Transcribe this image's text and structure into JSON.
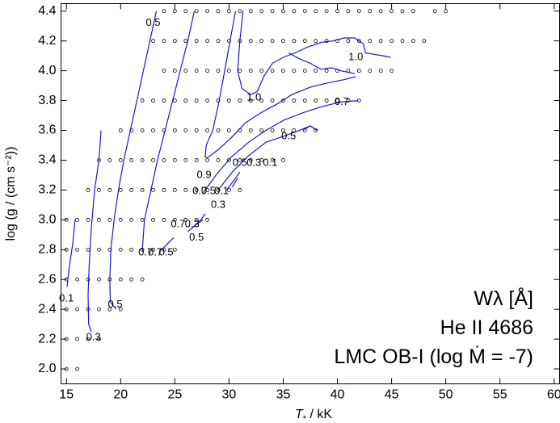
{
  "chart_data": {
    "type": "contour",
    "xlabel_main": "T",
    "xlabel_sub": "*",
    "xlabel_unit": " / kK",
    "ylabel": "log (g / (cm s⁻²))",
    "xlim": [
      14.5,
      60.5
    ],
    "ylim": [
      1.9,
      4.45
    ],
    "xticks": [
      15,
      20,
      25,
      30,
      35,
      40,
      45,
      50,
      55,
      60
    ],
    "yticks": [
      2.0,
      2.2,
      2.4,
      2.6,
      2.8,
      3.0,
      3.2,
      3.4,
      3.6,
      3.8,
      4.0,
      4.2,
      4.4
    ],
    "ytick_labels": [
      "2.0",
      "2.2",
      "2.4",
      "2.6",
      "2.8",
      "3.0",
      "3.2",
      "3.4",
      "3.6",
      "3.8",
      "4.0",
      "4.2",
      "4.4"
    ],
    "info_lines": [
      "Wλ [Å]",
      "He II 4686",
      "LMC OB-I (log Ṁ = -7)"
    ],
    "grid_rows": [
      {
        "logg": 4.4,
        "teff": [
          24,
          25,
          26,
          27,
          28,
          29,
          30,
          31,
          32,
          33,
          34,
          35,
          36,
          37,
          38,
          39,
          40,
          41,
          42,
          43,
          44,
          45,
          46,
          47,
          49,
          50
        ]
      },
      {
        "logg": 4.2,
        "teff": [
          23,
          24,
          25,
          26,
          27,
          28,
          29,
          30,
          31,
          32,
          33,
          34,
          35,
          36,
          37,
          38,
          39,
          40,
          41,
          42,
          43,
          44,
          45,
          46,
          47,
          48
        ]
      },
      {
        "logg": 4.0,
        "teff": [
          24,
          25,
          26,
          27,
          28,
          29,
          30,
          31,
          32,
          33,
          34,
          35,
          36,
          37,
          38,
          39,
          40,
          41,
          42,
          43,
          44,
          45
        ]
      },
      {
        "logg": 3.8,
        "teff": [
          22,
          23,
          24,
          25,
          26,
          27,
          28,
          29,
          30,
          31,
          32,
          33,
          34,
          35,
          36,
          37,
          38,
          39,
          40,
          41,
          42
        ]
      },
      {
        "logg": 3.6,
        "teff": [
          20,
          21,
          22,
          23,
          24,
          25,
          26,
          27,
          28,
          29,
          30,
          31,
          32,
          33,
          34,
          35,
          36,
          37,
          38
        ]
      },
      {
        "logg": 3.4,
        "teff": [
          18,
          19,
          20,
          21,
          22,
          23,
          24,
          25,
          26,
          27,
          28,
          29,
          30,
          31,
          32,
          33,
          34,
          35
        ]
      },
      {
        "logg": 3.2,
        "teff": [
          17,
          18,
          19,
          20,
          21,
          22,
          23,
          24,
          25,
          26,
          27,
          28,
          29,
          30,
          31
        ]
      },
      {
        "logg": 3.0,
        "teff": [
          15,
          16,
          17,
          18,
          19,
          20,
          21,
          22,
          23,
          24,
          25,
          26,
          27,
          28
        ]
      },
      {
        "logg": 2.8,
        "teff": [
          15,
          16,
          17,
          18,
          19,
          20,
          21,
          22,
          23,
          24,
          25
        ]
      },
      {
        "logg": 2.6,
        "teff": [
          15,
          16,
          17,
          18,
          19,
          20,
          21,
          22
        ]
      },
      {
        "logg": 2.4,
        "teff": [
          15,
          16,
          17,
          18,
          19,
          20
        ]
      },
      {
        "logg": 2.2,
        "teff": [
          15,
          16,
          17,
          18
        ]
      },
      {
        "logg": 2.0,
        "teff": [
          15,
          16
        ]
      }
    ],
    "contours": [
      {
        "level": "0.1",
        "points": [
          [
            15.8,
            3.0
          ],
          [
            15.6,
            2.85
          ],
          [
            15.3,
            2.7
          ],
          [
            15.05,
            2.55
          ]
        ]
      },
      {
        "level": "0.3",
        "points": [
          [
            18.2,
            3.6
          ],
          [
            18.0,
            3.4
          ],
          [
            17.6,
            3.2
          ],
          [
            17.3,
            2.95
          ],
          [
            17.1,
            2.7
          ],
          [
            17.0,
            2.5
          ],
          [
            17.05,
            2.3
          ],
          [
            17.3,
            2.25
          ]
        ]
      },
      {
        "level": "0.5",
        "points": [
          [
            23.3,
            4.4
          ],
          [
            22.7,
            4.2
          ],
          [
            22.1,
            4.0
          ],
          [
            21.5,
            3.8
          ],
          [
            20.9,
            3.6
          ],
          [
            20.3,
            3.4
          ],
          [
            19.8,
            3.2
          ],
          [
            19.4,
            3.0
          ],
          [
            19.1,
            2.8
          ],
          [
            19.0,
            2.6
          ],
          [
            19.05,
            2.45
          ],
          [
            19.6,
            2.4
          ]
        ]
      },
      {
        "level": "0.7",
        "points": [
          [
            26.8,
            4.4
          ],
          [
            26.2,
            4.2
          ],
          [
            25.5,
            4.0
          ],
          [
            24.8,
            3.8
          ],
          [
            24.1,
            3.6
          ],
          [
            23.4,
            3.4
          ],
          [
            22.8,
            3.2
          ],
          [
            22.2,
            3.0
          ],
          [
            22.0,
            2.8
          ]
        ]
      },
      {
        "level": "0.9",
        "points": [
          [
            30.6,
            4.4
          ],
          [
            30.1,
            4.2
          ],
          [
            29.6,
            4.0
          ],
          [
            29.1,
            3.8
          ],
          [
            28.5,
            3.6
          ],
          [
            27.9,
            3.5
          ],
          [
            27.8,
            3.42
          ],
          [
            28.1,
            3.42
          ],
          [
            29.0,
            3.47
          ],
          [
            30.2,
            3.55
          ],
          [
            31.5,
            3.65
          ],
          [
            33.0,
            3.72
          ],
          [
            34.5,
            3.78
          ],
          [
            35.8,
            3.84
          ],
          [
            37.5,
            3.89
          ],
          [
            39.2,
            3.92
          ],
          [
            40.6,
            3.94
          ],
          [
            41.7,
            3.96
          ]
        ]
      },
      {
        "level": "1.0",
        "points": [
          [
            31.3,
            4.4
          ],
          [
            31.0,
            4.2
          ],
          [
            30.8,
            4.0
          ],
          [
            31.2,
            3.88
          ],
          [
            32.0,
            3.84
          ],
          [
            32.6,
            3.86
          ],
          [
            33.2,
            3.96
          ],
          [
            34.0,
            4.05
          ],
          [
            35.0,
            4.09
          ],
          [
            36.1,
            4.12
          ],
          [
            37.3,
            4.16
          ],
          [
            38.5,
            4.19
          ],
          [
            39.6,
            4.2
          ],
          [
            40.6,
            4.22
          ],
          [
            41.6,
            4.22
          ],
          [
            42.4,
            4.18
          ],
          [
            42.6,
            4.12
          ],
          [
            43.4,
            4.11
          ],
          [
            44.2,
            4.1
          ],
          [
            44.9,
            4.09
          ]
        ]
      },
      {
        "level": "1.0b",
        "points": [
          [
            35.5,
            4.12
          ],
          [
            36.5,
            4.08
          ],
          [
            37.5,
            4.05
          ],
          [
            38.5,
            4.01
          ],
          [
            39.5,
            4.02
          ],
          [
            40.3,
            4.0
          ],
          [
            41.0,
            3.99
          ],
          [
            41.6,
            3.98
          ]
        ]
      },
      {
        "level": "0.7b",
        "points": [
          [
            27.8,
            3.2
          ],
          [
            28.8,
            3.3
          ],
          [
            30.2,
            3.42
          ],
          [
            31.8,
            3.52
          ],
          [
            33.4,
            3.6
          ],
          [
            35.1,
            3.67
          ],
          [
            36.9,
            3.72
          ],
          [
            38.6,
            3.76
          ],
          [
            40.3,
            3.79
          ],
          [
            41.9,
            3.8
          ]
        ]
      },
      {
        "level": "0.5b",
        "points": [
          [
            29.0,
            3.2
          ],
          [
            30.3,
            3.32
          ],
          [
            31.8,
            3.43
          ],
          [
            33.4,
            3.52
          ],
          [
            35.0,
            3.56
          ],
          [
            36.5,
            3.6
          ],
          [
            37.5,
            3.63
          ],
          [
            38.2,
            3.6
          ]
        ]
      },
      {
        "level": "0.3b",
        "points": [
          [
            29.8,
            3.2
          ],
          [
            30.6,
            3.28
          ],
          [
            31.0,
            3.32
          ]
        ]
      },
      {
        "level": "0.1b",
        "points": [
          [
            30.3,
            3.22
          ],
          [
            30.8,
            3.28
          ]
        ]
      },
      {
        "level": "0.3c",
        "points": [
          [
            26.8,
            2.96
          ],
          [
            27.4,
            3.0
          ],
          [
            27.8,
            3.04
          ]
        ]
      },
      {
        "level": "0.5c",
        "points": [
          [
            26.2,
            2.92
          ],
          [
            27.0,
            2.97
          ],
          [
            27.6,
            3.0
          ]
        ]
      },
      {
        "level": "0.7c",
        "points": [
          [
            23.8,
            2.8
          ],
          [
            24.6,
            2.86
          ],
          [
            24.9,
            2.88
          ]
        ]
      },
      {
        "level": "0.5d",
        "points": [
          [
            36.8,
            3.6
          ],
          [
            37.5,
            3.63
          ],
          [
            38.1,
            3.6
          ]
        ]
      }
    ],
    "contour_labels": [
      {
        "text": "0.1",
        "x": 15.0,
        "y": 2.47
      },
      {
        "text": "0.3",
        "x": 17.5,
        "y": 2.21
      },
      {
        "text": "0.5",
        "x": 19.5,
        "y": 2.43
      },
      {
        "text": "0.5",
        "x": 23.0,
        "y": 4.32
      },
      {
        "text": "0.9",
        "x": 27.7,
        "y": 3.3
      },
      {
        "text": "1.0",
        "x": 32.3,
        "y": 3.82
      },
      {
        "text": "1.0",
        "x": 41.7,
        "y": 4.09
      },
      {
        "text": "0.7",
        "x": 40.4,
        "y": 3.79
      },
      {
        "text": "0.5",
        "x": 35.5,
        "y": 3.56
      },
      {
        "text": "0.5",
        "x": 31.0,
        "y": 3.38
      },
      {
        "text": "0.3",
        "x": 32.3,
        "y": 3.38
      },
      {
        "text": "0.1",
        "x": 33.8,
        "y": 3.38
      },
      {
        "text": "0.7",
        "x": 27.3,
        "y": 3.19
      },
      {
        "text": "0.5",
        "x": 28.1,
        "y": 3.19
      },
      {
        "text": "0.1",
        "x": 29.3,
        "y": 3.19
      },
      {
        "text": "0.3",
        "x": 29.0,
        "y": 3.1
      },
      {
        "text": "0.7",
        "x": 25.3,
        "y": 2.97
      },
      {
        "text": "0.3",
        "x": 26.6,
        "y": 2.97
      },
      {
        "text": "0.5",
        "x": 27.0,
        "y": 2.88
      },
      {
        "text": "0.7",
        "x": 22.3,
        "y": 2.78
      },
      {
        "text": "0.7",
        "x": 23.2,
        "y": 2.78
      },
      {
        "text": "0.5",
        "x": 24.2,
        "y": 2.78
      }
    ]
  }
}
